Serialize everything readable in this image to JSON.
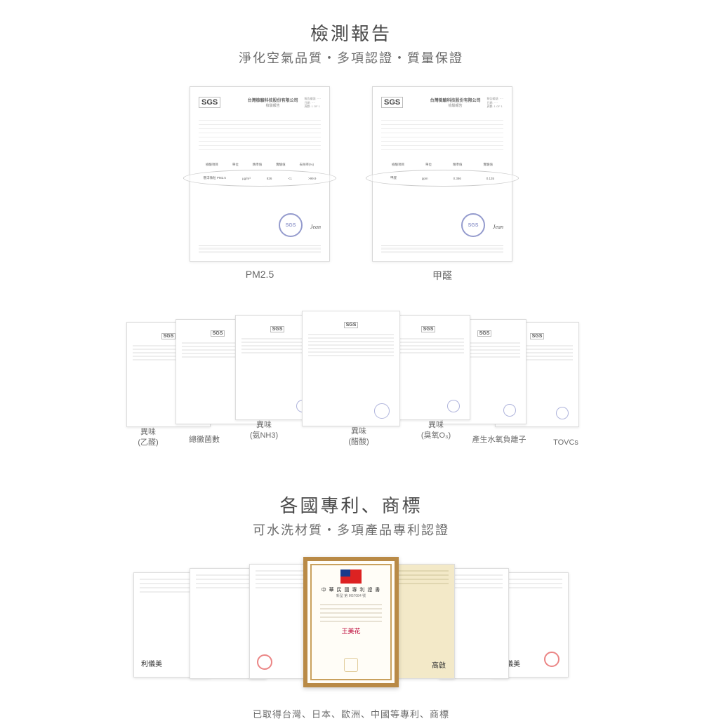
{
  "section1": {
    "title": "檢測報告",
    "subtitle": "淨化空氣品質・多項認證・質量保證",
    "sgs_label": "SGS",
    "doc_company": "台灣檢驗科技股份有限公司",
    "doc_report_label": "檢驗報告",
    "stamp_text": "SGS",
    "signature": "Jean",
    "top_reports": [
      {
        "label": "PM2.5",
        "data_header": [
          "檢驗項目",
          "單位",
          "精準值",
          "實驗值",
          "去除率(%)"
        ],
        "data_row": [
          "懸浮微粒 PM2.5",
          "μg/m³",
          "826",
          "<1",
          ">99.9"
        ]
      },
      {
        "label": "甲醛",
        "data_header": [
          "檢驗項目",
          "單位",
          "精準值",
          "實驗值"
        ],
        "data_row": [
          "甲醛",
          "ppm",
          "0.386",
          "0.135"
        ]
      }
    ],
    "fan_labels": [
      "異味\n(乙醛)",
      "總黴菌數",
      "異味\n(氨NH3)",
      "異味\n(醋酸)",
      "異味\n(臭氧O₃)",
      "產生水氧負離子",
      "TOVCs"
    ]
  },
  "section2": {
    "title": "各國專利、商標",
    "subtitle": "可水洗材質・多項產品專利認證",
    "center_cert_title": "中 華 民 國 專 利 證 書",
    "center_cert_sub": "新型 第 M57084 號",
    "center_cert_sign": "王美花",
    "misc_sign1": "利儀美",
    "misc_sign2": "高啟",
    "footer": "已取得台灣、日本、歐洲、中國等專利、商標"
  },
  "colors": {
    "title": "#4a4a4a",
    "subtitle": "#6a6a6a",
    "stamp": "#6871b8",
    "patent_border": "#b98a46",
    "red_seal": "#d33"
  }
}
